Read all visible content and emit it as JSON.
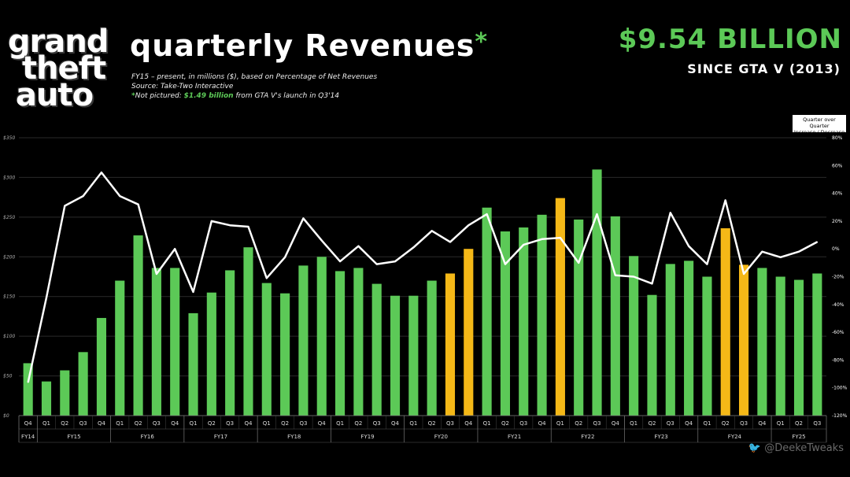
{
  "logo": {
    "line1": "grand",
    "line2": "theft",
    "line3": "auto"
  },
  "header": {
    "title": "quarterly Revenues",
    "title_star": "*",
    "subtitle1": "FY15 – present, in millions ($), based on Percentage of Net Revenues",
    "subtitle2": "Source: Take-Two Interactive",
    "footnote_star": "*",
    "footnote_pre": "Not pictured: ",
    "footnote_value": "$1.49 billion",
    "footnote_post": " from GTA V's launch in Q3'14",
    "headline": "$9.54 BILLION",
    "subhead": "SINCE GTA V (2013)"
  },
  "secondary_legend": {
    "line1": "Quarter over Quarter",
    "line2": "Increase / Decrease"
  },
  "credit": {
    "icon": "twitter-icon",
    "handle": "@DeekeTweaks"
  },
  "colors": {
    "bar": "#5cc957",
    "highlight": "#f5b817",
    "line": "#ffffff",
    "accent": "#5cc957",
    "background": "#000000"
  },
  "chart_data": {
    "type": "bar",
    "ylim": [
      0,
      350
    ],
    "y_ticks": [
      "$0",
      "$50",
      "$100",
      "$150",
      "$200",
      "$250",
      "$300",
      "$350"
    ],
    "y2lim": [
      -120,
      80
    ],
    "y2_ticks": [
      "-120%",
      "-100%",
      "-80%",
      "-60%",
      "-40%",
      "-20%",
      "0%",
      "20%",
      "40%",
      "60%",
      "80%"
    ],
    "grid": true,
    "categories": [
      "Q4",
      "Q1",
      "Q2",
      "Q3",
      "Q4",
      "Q1",
      "Q2",
      "Q3",
      "Q4",
      "Q1",
      "Q2",
      "Q3",
      "Q4",
      "Q1",
      "Q2",
      "Q3",
      "Q4",
      "Q1",
      "Q2",
      "Q3",
      "Q4",
      "Q1",
      "Q2",
      "Q3",
      "Q4",
      "Q1",
      "Q2",
      "Q3",
      "Q4",
      "Q1",
      "Q2",
      "Q3",
      "Q4",
      "Q1",
      "Q2",
      "Q3",
      "Q4",
      "Q1",
      "Q2",
      "Q3",
      "Q4",
      "Q1",
      "Q2",
      "Q3"
    ],
    "fiscal_years": [
      {
        "label": "FY14",
        "start": 0,
        "count": 1
      },
      {
        "label": "FY15",
        "start": 1,
        "count": 4
      },
      {
        "label": "FY16",
        "start": 5,
        "count": 4
      },
      {
        "label": "FY17",
        "start": 9,
        "count": 4
      },
      {
        "label": "FY18",
        "start": 13,
        "count": 4
      },
      {
        "label": "FY19",
        "start": 17,
        "count": 4
      },
      {
        "label": "FY20",
        "start": 21,
        "count": 4
      },
      {
        "label": "FY21",
        "start": 25,
        "count": 4
      },
      {
        "label": "FY22",
        "start": 29,
        "count": 4
      },
      {
        "label": "FY23",
        "start": 33,
        "count": 4
      },
      {
        "label": "FY24",
        "start": 37,
        "count": 4
      },
      {
        "label": "FY25",
        "start": 41,
        "count": 3
      }
    ],
    "series": [
      {
        "values": [
          66,
          43,
          57,
          80,
          123,
          170,
          227,
          186,
          186,
          129,
          155,
          183,
          212,
          167,
          154,
          189,
          200,
          182,
          186,
          166,
          151,
          151,
          170,
          179,
          210,
          262,
          232,
          237,
          253,
          274,
          247,
          310,
          251,
          201,
          152,
          191,
          195,
          175,
          236,
          190,
          186,
          175,
          171,
          179
        ],
        "highlight": [
          false,
          false,
          false,
          false,
          false,
          false,
          false,
          false,
          false,
          false,
          false,
          false,
          false,
          false,
          false,
          false,
          false,
          false,
          false,
          false,
          false,
          false,
          false,
          true,
          true,
          false,
          false,
          false,
          false,
          true,
          false,
          false,
          false,
          false,
          false,
          false,
          false,
          false,
          true,
          true,
          false,
          false,
          false,
          false
        ]
      },
      {
        "type": "line",
        "axis": "secondary",
        "values": [
          -96,
          -35,
          31,
          38,
          55,
          38,
          32,
          -18,
          0,
          -31,
          20,
          17,
          16,
          -21,
          -6,
          22,
          6,
          -9,
          2,
          -11,
          -9,
          1,
          13,
          5,
          17,
          25,
          -11,
          3,
          7,
          8,
          -10,
          25,
          -19,
          -20,
          -25,
          26,
          2,
          -11,
          35,
          -18,
          -2,
          -6,
          -2,
          5
        ]
      }
    ]
  }
}
